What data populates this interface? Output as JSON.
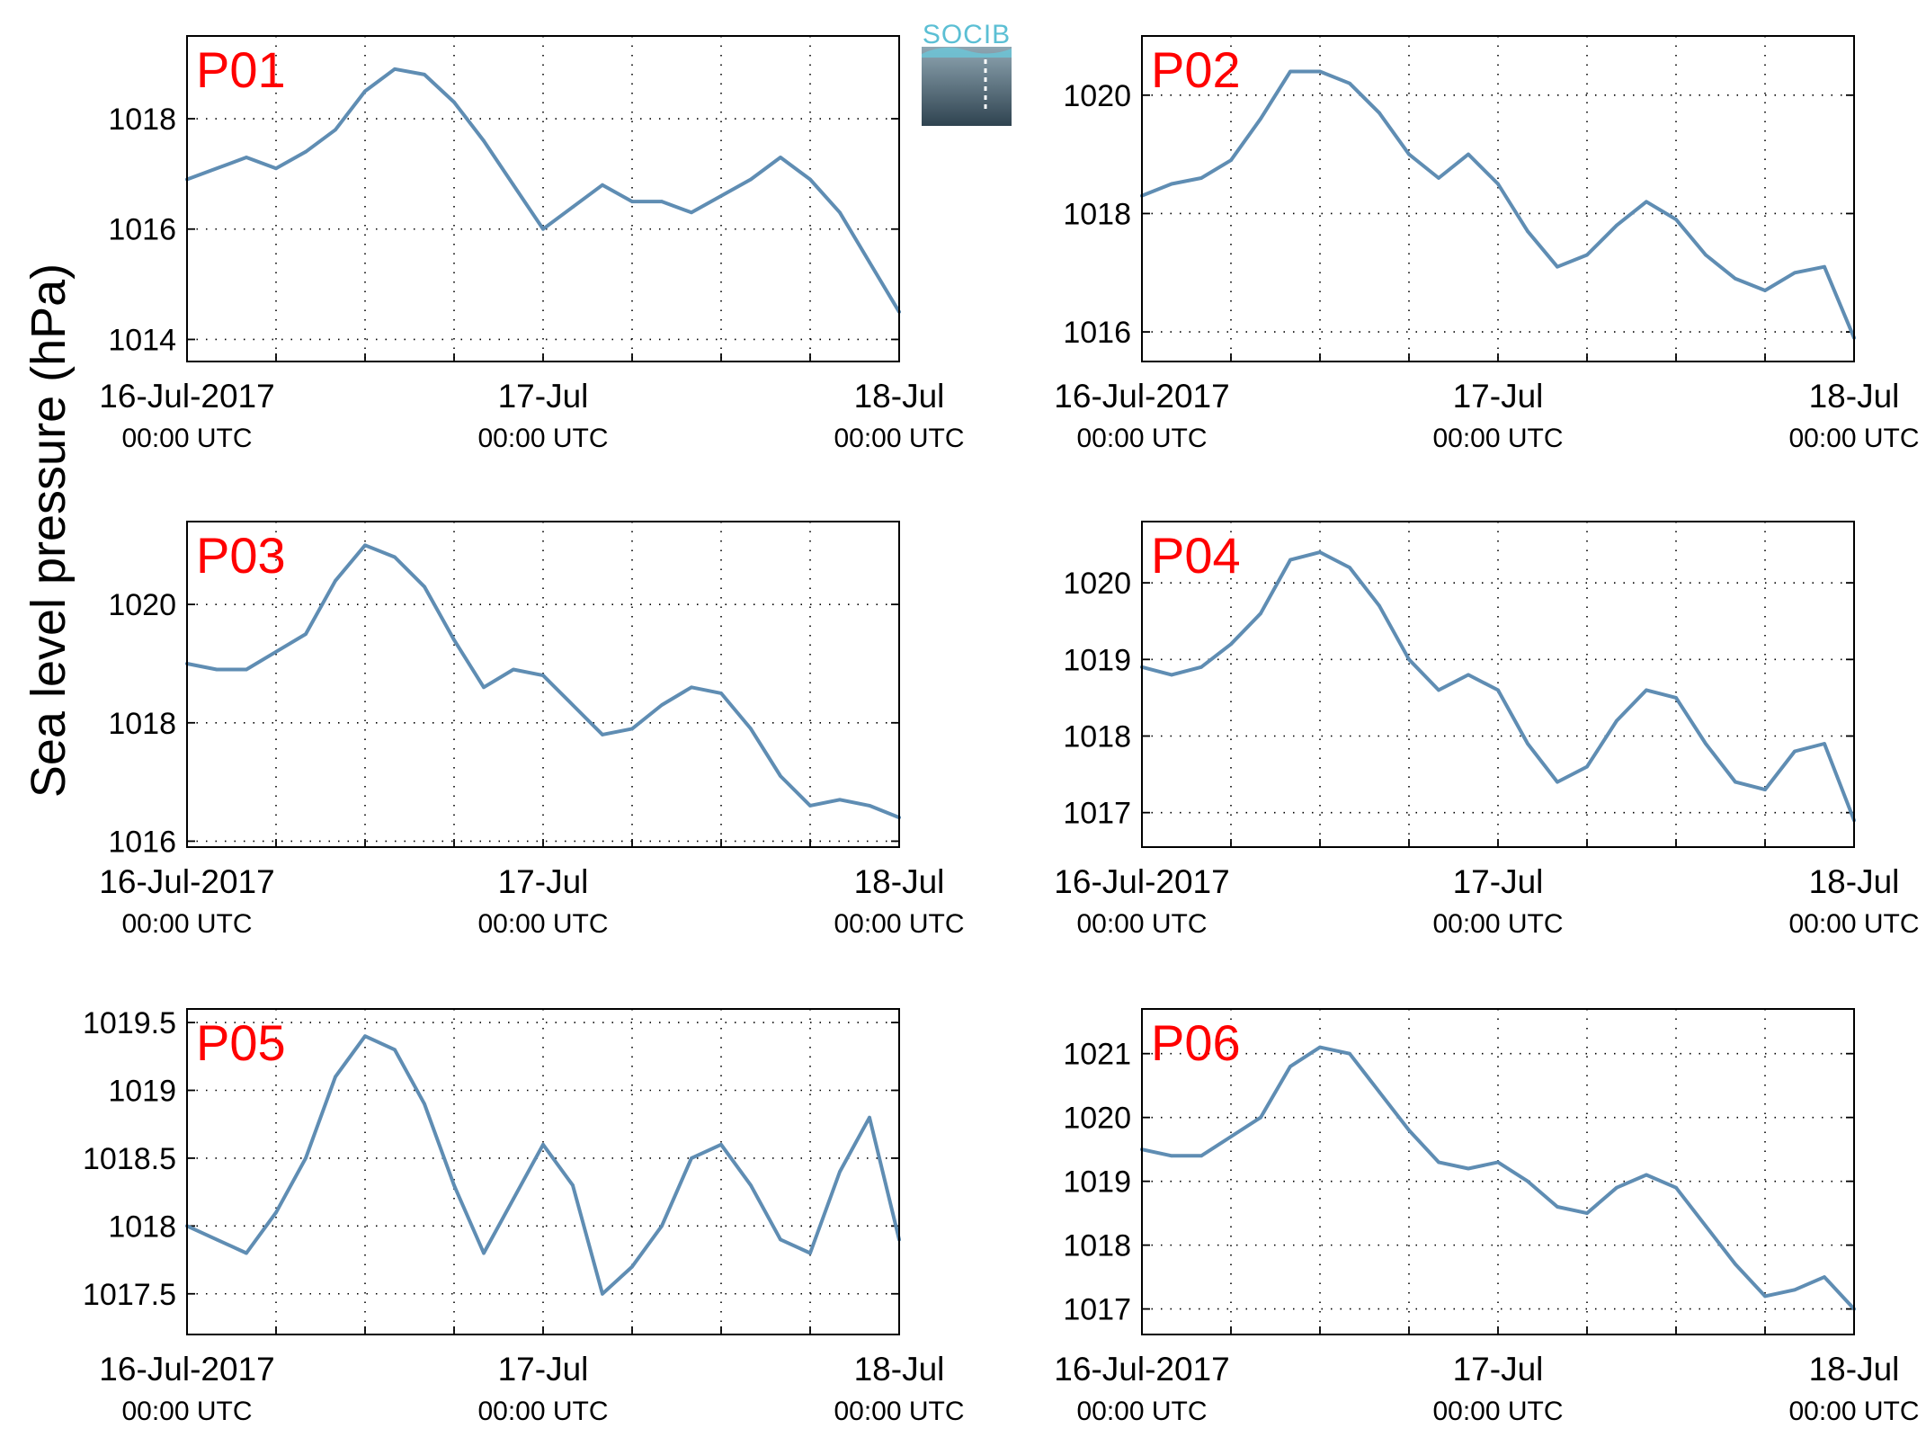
{
  "figure": {
    "ylabel": "Sea level pressure (hPa)",
    "logo_text": "SOCIB",
    "colors": {
      "line": "#5f8db3",
      "panel_label": "#ff0000",
      "axis": "#000000",
      "grid": "#000000"
    }
  },
  "chart_data": [
    {
      "type": "line",
      "title": "P01",
      "x_unit": "hours since 16-Jul-2017 00:00 UTC",
      "x": [
        0,
        2,
        4,
        6,
        8,
        10,
        12,
        14,
        16,
        18,
        20,
        22,
        24,
        26,
        28,
        30,
        32,
        34,
        36,
        38,
        40,
        42,
        44,
        46,
        48
      ],
      "values": [
        1016.9,
        1017.1,
        1017.3,
        1017.1,
        1017.4,
        1017.8,
        1018.5,
        1018.9,
        1018.8,
        1018.3,
        1017.6,
        1016.8,
        1016.0,
        1016.4,
        1016.8,
        1016.5,
        1016.5,
        1016.3,
        1016.6,
        1016.9,
        1017.3,
        1016.9,
        1016.3,
        1015.4,
        1014.5
      ],
      "xlim": [
        "16-Jul-2017 00:00 UTC",
        "18-Jul 00:00 UTC"
      ],
      "ylim": [
        1013.6,
        1019.5
      ],
      "yticks": [
        "1014",
        "1016",
        "1018"
      ],
      "xticks": [
        {
          "date": "16-Jul-2017",
          "time": "00:00 UTC"
        },
        {
          "date": "17-Jul",
          "time": "00:00 UTC"
        },
        {
          "date": "18-Jul",
          "time": "00:00 UTC"
        }
      ],
      "grid": true
    },
    {
      "type": "line",
      "title": "P02",
      "x_unit": "hours since 16-Jul-2017 00:00 UTC",
      "x": [
        0,
        2,
        4,
        6,
        8,
        10,
        12,
        14,
        16,
        18,
        20,
        22,
        24,
        26,
        28,
        30,
        32,
        34,
        36,
        38,
        40,
        42,
        44,
        46,
        48
      ],
      "values": [
        1018.3,
        1018.5,
        1018.6,
        1018.9,
        1019.6,
        1020.4,
        1020.4,
        1020.2,
        1019.7,
        1019.0,
        1018.6,
        1019.0,
        1018.5,
        1017.7,
        1017.1,
        1017.3,
        1017.8,
        1018.2,
        1017.9,
        1017.3,
        1016.9,
        1016.7,
        1017.0,
        1017.1,
        1015.9
      ],
      "xlim": [
        "16-Jul-2017 00:00 UTC",
        "18-Jul 00:00 UTC"
      ],
      "ylim": [
        1015.5,
        1021.0
      ],
      "yticks": [
        "1016",
        "1018",
        "1020"
      ],
      "xticks": [
        {
          "date": "16-Jul-2017",
          "time": "00:00 UTC"
        },
        {
          "date": "17-Jul",
          "time": "00:00 UTC"
        },
        {
          "date": "18-Jul",
          "time": "00:00 UTC"
        }
      ],
      "grid": true
    },
    {
      "type": "line",
      "title": "P03",
      "x_unit": "hours since 16-Jul-2017 00:00 UTC",
      "x": [
        0,
        2,
        4,
        6,
        8,
        10,
        12,
        14,
        16,
        18,
        20,
        22,
        24,
        26,
        28,
        30,
        32,
        34,
        36,
        38,
        40,
        42,
        44,
        46,
        48
      ],
      "values": [
        1019.0,
        1018.9,
        1018.9,
        1019.2,
        1019.5,
        1020.4,
        1021.0,
        1020.8,
        1020.3,
        1019.4,
        1018.6,
        1018.9,
        1018.8,
        1018.3,
        1017.8,
        1017.9,
        1018.3,
        1018.6,
        1018.5,
        1017.9,
        1017.1,
        1016.6,
        1016.7,
        1016.6,
        1016.4
      ],
      "xlim": [
        "16-Jul-2017 00:00 UTC",
        "18-Jul 00:00 UTC"
      ],
      "ylim": [
        1015.9,
        1021.4
      ],
      "yticks": [
        "1016",
        "1018",
        "1020"
      ],
      "xticks": [
        {
          "date": "16-Jul-2017",
          "time": "00:00 UTC"
        },
        {
          "date": "17-Jul",
          "time": "00:00 UTC"
        },
        {
          "date": "18-Jul",
          "time": "00:00 UTC"
        }
      ],
      "grid": true
    },
    {
      "type": "line",
      "title": "P04",
      "x_unit": "hours since 16-Jul-2017 00:00 UTC",
      "x": [
        0,
        2,
        4,
        6,
        8,
        10,
        12,
        14,
        16,
        18,
        20,
        22,
        24,
        26,
        28,
        30,
        32,
        34,
        36,
        38,
        40,
        42,
        44,
        46,
        48
      ],
      "values": [
        1018.9,
        1018.8,
        1018.9,
        1019.2,
        1019.6,
        1020.3,
        1020.4,
        1020.2,
        1019.7,
        1019.0,
        1018.6,
        1018.8,
        1018.6,
        1017.9,
        1017.4,
        1017.6,
        1018.2,
        1018.6,
        1018.5,
        1017.9,
        1017.4,
        1017.3,
        1017.8,
        1017.9,
        1016.9
      ],
      "xlim": [
        "16-Jul-2017 00:00 UTC",
        "18-Jul 00:00 UTC"
      ],
      "ylim": [
        1016.55,
        1020.8
      ],
      "yticks": [
        "1017",
        "1018",
        "1019",
        "1020"
      ],
      "xticks": [
        {
          "date": "16-Jul-2017",
          "time": "00:00 UTC"
        },
        {
          "date": "17-Jul",
          "time": "00:00 UTC"
        },
        {
          "date": "18-Jul",
          "time": "00:00 UTC"
        }
      ],
      "grid": true
    },
    {
      "type": "line",
      "title": "P05",
      "x_unit": "hours since 16-Jul-2017 00:00 UTC",
      "x": [
        0,
        2,
        4,
        6,
        8,
        10,
        12,
        14,
        16,
        18,
        20,
        22,
        24,
        26,
        28,
        30,
        32,
        34,
        36,
        38,
        40,
        42,
        44,
        46,
        48
      ],
      "values": [
        1018.0,
        1017.9,
        1017.8,
        1018.1,
        1018.5,
        1019.1,
        1019.4,
        1019.3,
        1018.9,
        1018.3,
        1017.8,
        1018.2,
        1018.6,
        1018.3,
        1017.5,
        1017.7,
        1018.0,
        1018.5,
        1018.6,
        1018.3,
        1017.9,
        1017.8,
        1018.4,
        1018.8,
        1017.9
      ],
      "xlim": [
        "16-Jul-2017 00:00 UTC",
        "18-Jul 00:00 UTC"
      ],
      "ylim": [
        1017.2,
        1019.6
      ],
      "yticks": [
        "1017.5",
        "1018",
        "1018.5",
        "1019",
        "1019.5"
      ],
      "xticks": [
        {
          "date": "16-Jul-2017",
          "time": "00:00 UTC"
        },
        {
          "date": "17-Jul",
          "time": "00:00 UTC"
        },
        {
          "date": "18-Jul",
          "time": "00:00 UTC"
        }
      ],
      "grid": true
    },
    {
      "type": "line",
      "title": "P06",
      "x_unit": "hours since 16-Jul-2017 00:00 UTC",
      "x": [
        0,
        2,
        4,
        6,
        8,
        10,
        12,
        14,
        16,
        18,
        20,
        22,
        24,
        26,
        28,
        30,
        32,
        34,
        36,
        38,
        40,
        42,
        44,
        46,
        48
      ],
      "values": [
        1019.5,
        1019.4,
        1019.4,
        1019.7,
        1020.0,
        1020.8,
        1021.1,
        1021.0,
        1020.4,
        1019.8,
        1019.3,
        1019.2,
        1019.3,
        1019.0,
        1018.6,
        1018.5,
        1018.9,
        1019.1,
        1018.9,
        1018.3,
        1017.7,
        1017.2,
        1017.3,
        1017.5,
        1017.0
      ],
      "xlim": [
        "16-Jul-2017 00:00 UTC",
        "18-Jul 00:00 UTC"
      ],
      "ylim": [
        1016.6,
        1021.7
      ],
      "yticks": [
        "1017",
        "1018",
        "1019",
        "1020",
        "1021"
      ],
      "xticks": [
        {
          "date": "16-Jul-2017",
          "time": "00:00 UTC"
        },
        {
          "date": "17-Jul",
          "time": "00:00 UTC"
        },
        {
          "date": "18-Jul",
          "time": "00:00 UTC"
        }
      ],
      "grid": true
    }
  ]
}
